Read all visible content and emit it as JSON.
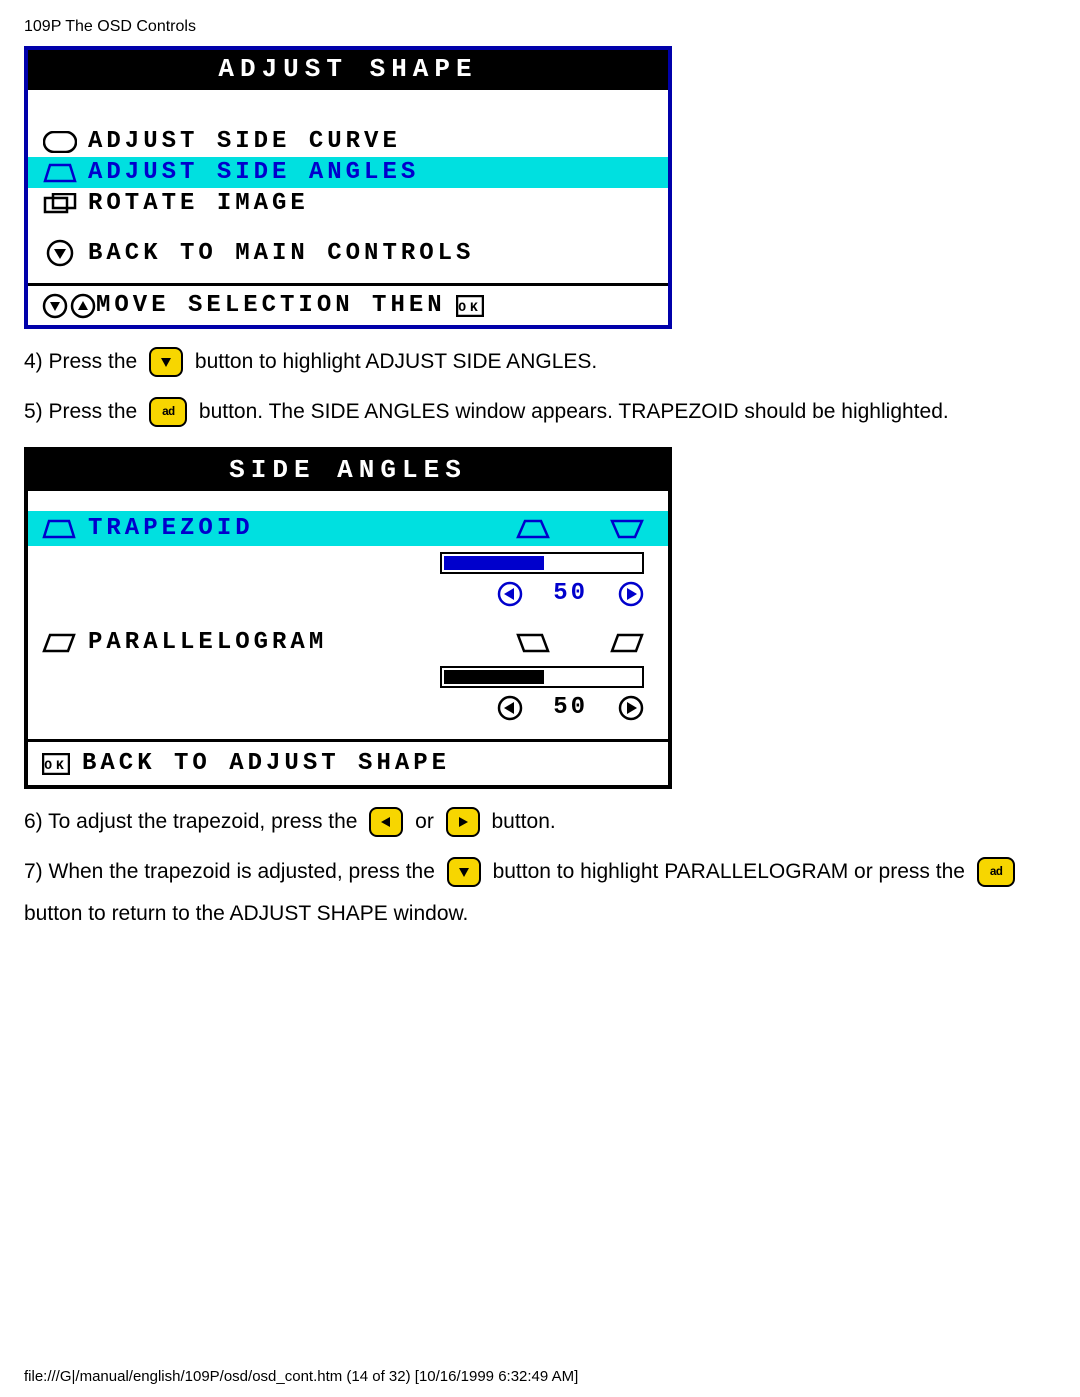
{
  "header": "109P The OSD Controls",
  "adjust_shape": {
    "title": "ADJUST SHAPE",
    "items": [
      {
        "label": "ADJUST SIDE CURVE",
        "highlighted": false
      },
      {
        "label": "ADJUST SIDE ANGLES",
        "highlighted": true
      },
      {
        "label": "ROTATE IMAGE",
        "highlighted": false
      }
    ],
    "back_label": "BACK TO MAIN CONTROLS",
    "footer_label": "MOVE SELECTION THEN",
    "colors": {
      "border": "#0000aa",
      "title_bg": "#000000",
      "title_fg": "#ffffff",
      "highlight_bg": "#00e0e0",
      "highlight_fg": "#0000cc"
    }
  },
  "instructions": {
    "step4_pre": "4) Press the ",
    "step4_post": " button to highlight ADJUST SIDE ANGLES.",
    "step5_pre": "5) Press the ",
    "step5_post": " button. The SIDE ANGLES window appears. TRAPEZOID should be highlighted.",
    "step6_pre": "6) To adjust the trapezoid, press the ",
    "step6_mid": " or ",
    "step6_post": " button.",
    "step7_pre": "7) When the trapezoid is adjusted, press the ",
    "step7_mid": " button to highlight PARALLELOGRAM or press the ",
    "step7_post": "button to return to the ADJUST SHAPE window."
  },
  "side_angles": {
    "title": "SIDE ANGLES",
    "trapezoid": {
      "label": "TRAPEZOID",
      "value": 50,
      "value_text": "50",
      "highlighted": true,
      "fill_pct": 50,
      "fill_color": "#0000cc"
    },
    "parallelogram": {
      "label": "PARALLELOGRAM",
      "value": 50,
      "value_text": "50",
      "highlighted": false,
      "fill_pct": 50,
      "fill_color": "#000000"
    },
    "back_label": "BACK TO ADJUST SHAPE",
    "colors": {
      "border": "#000000",
      "highlight_bg": "#00e0e0",
      "highlight_fg": "#0000cc"
    }
  },
  "buttons": {
    "down_color": "#f7d600",
    "ok_label": "ad",
    "ok_color": "#f7d600"
  },
  "footer": "file:///G|/manual/english/109P/osd/osd_cont.htm (14 of 32) [10/16/1999 6:32:49 AM]"
}
